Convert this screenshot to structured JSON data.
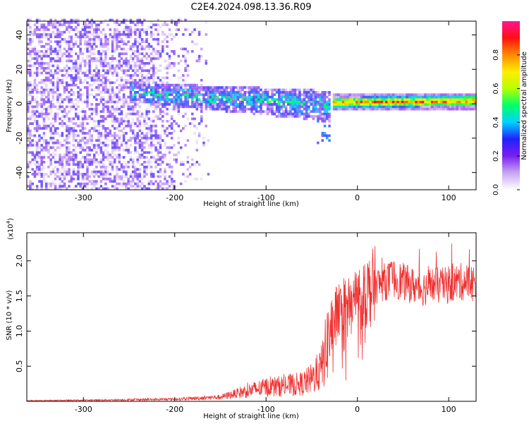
{
  "title": "C2E4.2024.098.13.36.R09",
  "chart_data": [
    {
      "type": "heatmap",
      "xlabel": "Height of straight line (km)",
      "ylabel": "Frequency (Hz)",
      "xlim": [
        -362,
        130
      ],
      "ylim": [
        -50,
        48
      ],
      "xticks": [
        -300,
        -200,
        -100,
        0,
        100
      ],
      "yticks": [
        -40,
        -20,
        0,
        20,
        40
      ],
      "colorbar": {
        "label": "Normalized spectral amplitude",
        "range": [
          0,
          1
        ],
        "ticks": [
          "0.0",
          "0.2",
          "0.4",
          "0.6",
          "0.8"
        ],
        "colormap": [
          "#ffffff",
          "#c7a6f2",
          "#7a1ff0",
          "#2020ff",
          "#00d2ff",
          "#00ff6a",
          "#b5ff00",
          "#ffee00",
          "#ff8a00",
          "#ff1010",
          "#ff1493"
        ]
      },
      "regions": [
        {
          "name": "noise",
          "x_range": [
            -362,
            -160
          ],
          "freq_range": [
            -50,
            48
          ],
          "amplitude": 0.15
        },
        {
          "name": "signal band",
          "x_range": [
            -250,
            -30
          ],
          "center_freq": [
            6,
            -2
          ],
          "half_width": [
            6,
            9
          ],
          "amplitude": 0.35
        },
        {
          "name": "signal trace",
          "x_range": [
            -28,
            130
          ],
          "center_freq": [
            0,
            1
          ],
          "half_width": [
            3,
            4
          ],
          "amplitude": 0.9
        }
      ]
    },
    {
      "type": "line",
      "xlabel": "Height of straight line (km)",
      "ylabel": "SNR (10 * v/v)",
      "yscale_label": "(x10",
      "yscale_exp": "4",
      "xlim": [
        -362,
        130
      ],
      "ylim": [
        0,
        24000
      ],
      "xticks": [
        -300,
        -200,
        -100,
        0,
        100
      ],
      "yticks": [
        5000,
        10000,
        15000,
        20000
      ],
      "ytick_labels": [
        "0.5",
        "1.0",
        "1.5",
        "2.0"
      ],
      "series": [
        {
          "color": "#f03030",
          "x": [
            -362,
            -300,
            -200,
            -150,
            -120,
            -100,
            -80,
            -60,
            -50,
            -40,
            -35,
            -30,
            -25,
            -20,
            -15,
            -10,
            0,
            10,
            20,
            30,
            40,
            50,
            60,
            70,
            80,
            90,
            100,
            110,
            120,
            130
          ],
          "y": [
            100,
            150,
            300,
            600,
            1500,
            2000,
            2200,
            2500,
            3200,
            4500,
            7000,
            10000,
            12000,
            12500,
            13500,
            14000,
            14500,
            15500,
            16500,
            17000,
            17500,
            17000,
            16500,
            16000,
            16500,
            16500,
            16500,
            17000,
            17000,
            16800
          ]
        }
      ]
    }
  ]
}
